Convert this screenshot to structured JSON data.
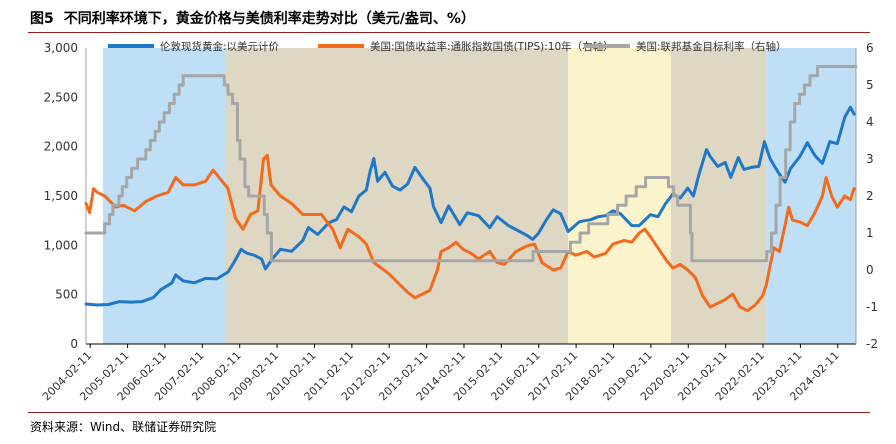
{
  "figure": {
    "label": "图5",
    "title": "不同利率环境下，黄金价格与美债利率走势对比（美元/盎司、%）",
    "source": "资料来源：Wind、联储证券研究院"
  },
  "chart_data": {
    "type": "line",
    "x_range": [
      2004.0,
      2024.6
    ],
    "x_ticks": [
      "2004-02-11",
      "2005-02-11",
      "2006-02-11",
      "2007-02-11",
      "2008-02-11",
      "2009-02-11",
      "2010-02-11",
      "2011-02-11",
      "2012-02-11",
      "2013-02-11",
      "2014-02-11",
      "2015-02-11",
      "2016-02-11",
      "2017-02-11",
      "2018-02-11",
      "2019-02-11",
      "2020-02-11",
      "2021-02-11",
      "2022-02-11",
      "2023-02-11",
      "2024-02-11"
    ],
    "y_left": {
      "range": [
        0,
        3000
      ],
      "ticks": [
        "0",
        "500",
        "1,000",
        "1,500",
        "2,000",
        "2,500",
        "3,000"
      ],
      "tick_values": [
        0,
        500,
        1000,
        1500,
        2000,
        2500,
        3000
      ]
    },
    "y_right": {
      "range": [
        -2,
        6
      ],
      "ticks": [
        "-2",
        "-1",
        "0",
        "1",
        "2",
        "3",
        "4",
        "5",
        "6"
      ],
      "tick_values": [
        -2,
        -1,
        0,
        1,
        2,
        3,
        4,
        5,
        6
      ]
    },
    "shaded_periods": [
      {
        "start": 2004.45,
        "end": 2007.72,
        "color": "#bfdff6",
        "meaning": "rate hike"
      },
      {
        "start": 2007.72,
        "end": 2016.9,
        "color": "#ddd7c3",
        "meaning": "cut / zero rate"
      },
      {
        "start": 2016.9,
        "end": 2019.65,
        "color": "#fbf3cc",
        "meaning": "hike"
      },
      {
        "start": 2019.65,
        "end": 2022.2,
        "color": "#ddd7c3",
        "meaning": "cut / zero rate"
      },
      {
        "start": 2022.2,
        "end": 2024.6,
        "color": "#bfdff6",
        "meaning": "rate hike"
      }
    ],
    "series": [
      {
        "name": "伦敦现货黄金:以美元计价",
        "axis": "left",
        "color": "#1f77c9",
        "points": [
          [
            2004.0,
            405
          ],
          [
            2004.3,
            395
          ],
          [
            2004.6,
            400
          ],
          [
            2004.9,
            430
          ],
          [
            2005.2,
            425
          ],
          [
            2005.5,
            430
          ],
          [
            2005.8,
            470
          ],
          [
            2006.0,
            550
          ],
          [
            2006.3,
            620
          ],
          [
            2006.4,
            700
          ],
          [
            2006.6,
            640
          ],
          [
            2006.9,
            620
          ],
          [
            2007.2,
            665
          ],
          [
            2007.5,
            660
          ],
          [
            2007.8,
            730
          ],
          [
            2007.95,
            820
          ],
          [
            2008.15,
            960
          ],
          [
            2008.3,
            920
          ],
          [
            2008.5,
            900
          ],
          [
            2008.7,
            860
          ],
          [
            2008.8,
            760
          ],
          [
            2009.0,
            870
          ],
          [
            2009.2,
            960
          ],
          [
            2009.5,
            940
          ],
          [
            2009.8,
            1050
          ],
          [
            2009.95,
            1180
          ],
          [
            2010.2,
            1110
          ],
          [
            2010.5,
            1230
          ],
          [
            2010.7,
            1260
          ],
          [
            2010.9,
            1390
          ],
          [
            2011.1,
            1340
          ],
          [
            2011.3,
            1500
          ],
          [
            2011.5,
            1560
          ],
          [
            2011.6,
            1750
          ],
          [
            2011.7,
            1880
          ],
          [
            2011.8,
            1650
          ],
          [
            2012.0,
            1740
          ],
          [
            2012.2,
            1600
          ],
          [
            2012.4,
            1560
          ],
          [
            2012.6,
            1620
          ],
          [
            2012.8,
            1790
          ],
          [
            2013.0,
            1680
          ],
          [
            2013.2,
            1580
          ],
          [
            2013.3,
            1390
          ],
          [
            2013.5,
            1230
          ],
          [
            2013.7,
            1400
          ],
          [
            2014.0,
            1210
          ],
          [
            2014.2,
            1330
          ],
          [
            2014.5,
            1300
          ],
          [
            2014.8,
            1180
          ],
          [
            2015.0,
            1290
          ],
          [
            2015.3,
            1200
          ],
          [
            2015.5,
            1160
          ],
          [
            2015.8,
            1100
          ],
          [
            2015.95,
            1060
          ],
          [
            2016.1,
            1120
          ],
          [
            2016.3,
            1250
          ],
          [
            2016.5,
            1360
          ],
          [
            2016.7,
            1320
          ],
          [
            2016.9,
            1140
          ],
          [
            2017.2,
            1240
          ],
          [
            2017.5,
            1260
          ],
          [
            2017.7,
            1290
          ],
          [
            2017.9,
            1300
          ],
          [
            2018.1,
            1350
          ],
          [
            2018.3,
            1320
          ],
          [
            2018.6,
            1200
          ],
          [
            2018.8,
            1200
          ],
          [
            2019.1,
            1310
          ],
          [
            2019.3,
            1290
          ],
          [
            2019.5,
            1420
          ],
          [
            2019.7,
            1520
          ],
          [
            2019.9,
            1480
          ],
          [
            2020.1,
            1580
          ],
          [
            2020.25,
            1500
          ],
          [
            2020.4,
            1720
          ],
          [
            2020.6,
            1970
          ],
          [
            2020.7,
            1900
          ],
          [
            2020.9,
            1800
          ],
          [
            2021.1,
            1840
          ],
          [
            2021.25,
            1690
          ],
          [
            2021.45,
            1890
          ],
          [
            2021.6,
            1770
          ],
          [
            2021.8,
            1790
          ],
          [
            2022.0,
            1800
          ],
          [
            2022.15,
            2050
          ],
          [
            2022.3,
            1880
          ],
          [
            2022.5,
            1750
          ],
          [
            2022.7,
            1640
          ],
          [
            2022.85,
            1780
          ],
          [
            2023.1,
            1900
          ],
          [
            2023.3,
            2040
          ],
          [
            2023.5,
            1910
          ],
          [
            2023.7,
            1830
          ],
          [
            2023.9,
            2050
          ],
          [
            2024.1,
            2030
          ],
          [
            2024.3,
            2300
          ],
          [
            2024.45,
            2400
          ],
          [
            2024.55,
            2330
          ]
        ]
      },
      {
        "name": "美国:国债收益率:通胀指数国债(TIPS):10年（右轴）",
        "axis": "right",
        "color": "#f26b1d",
        "points": [
          [
            2004.0,
            1.8
          ],
          [
            2004.1,
            1.55
          ],
          [
            2004.2,
            2.2
          ],
          [
            2004.3,
            2.1
          ],
          [
            2004.5,
            2.0
          ],
          [
            2004.8,
            1.7
          ],
          [
            2005.0,
            1.75
          ],
          [
            2005.3,
            1.6
          ],
          [
            2005.6,
            1.85
          ],
          [
            2005.9,
            2.0
          ],
          [
            2006.2,
            2.1
          ],
          [
            2006.4,
            2.5
          ],
          [
            2006.6,
            2.3
          ],
          [
            2006.9,
            2.3
          ],
          [
            2007.2,
            2.4
          ],
          [
            2007.4,
            2.7
          ],
          [
            2007.6,
            2.45
          ],
          [
            2007.8,
            2.2
          ],
          [
            2008.0,
            1.4
          ],
          [
            2008.2,
            1.1
          ],
          [
            2008.4,
            1.5
          ],
          [
            2008.6,
            1.6
          ],
          [
            2008.75,
            3.0
          ],
          [
            2008.85,
            3.1
          ],
          [
            2008.95,
            2.3
          ],
          [
            2009.2,
            2.0
          ],
          [
            2009.5,
            1.8
          ],
          [
            2009.8,
            1.5
          ],
          [
            2010.0,
            1.5
          ],
          [
            2010.3,
            1.5
          ],
          [
            2010.6,
            1.1
          ],
          [
            2010.8,
            0.6
          ],
          [
            2011.0,
            1.1
          ],
          [
            2011.3,
            0.9
          ],
          [
            2011.5,
            0.7
          ],
          [
            2011.7,
            0.2
          ],
          [
            2011.9,
            0.05
          ],
          [
            2012.1,
            -0.1
          ],
          [
            2012.4,
            -0.4
          ],
          [
            2012.6,
            -0.6
          ],
          [
            2012.8,
            -0.75
          ],
          [
            2013.0,
            -0.65
          ],
          [
            2013.2,
            -0.55
          ],
          [
            2013.4,
            0.0
          ],
          [
            2013.5,
            0.5
          ],
          [
            2013.7,
            0.6
          ],
          [
            2013.9,
            0.75
          ],
          [
            2014.1,
            0.55
          ],
          [
            2014.3,
            0.45
          ],
          [
            2014.5,
            0.3
          ],
          [
            2014.8,
            0.5
          ],
          [
            2015.0,
            0.2
          ],
          [
            2015.2,
            0.15
          ],
          [
            2015.5,
            0.5
          ],
          [
            2015.8,
            0.65
          ],
          [
            2016.0,
            0.7
          ],
          [
            2016.2,
            0.2
          ],
          [
            2016.5,
            0.0
          ],
          [
            2016.7,
            0.05
          ],
          [
            2016.9,
            0.5
          ],
          [
            2017.1,
            0.4
          ],
          [
            2017.4,
            0.5
          ],
          [
            2017.6,
            0.35
          ],
          [
            2017.9,
            0.45
          ],
          [
            2018.1,
            0.7
          ],
          [
            2018.4,
            0.8
          ],
          [
            2018.6,
            0.75
          ],
          [
            2018.8,
            1.0
          ],
          [
            2018.95,
            1.1
          ],
          [
            2019.1,
            0.9
          ],
          [
            2019.3,
            0.6
          ],
          [
            2019.5,
            0.3
          ],
          [
            2019.7,
            0.05
          ],
          [
            2019.9,
            0.15
          ],
          [
            2020.1,
            0.0
          ],
          [
            2020.3,
            -0.2
          ],
          [
            2020.5,
            -0.7
          ],
          [
            2020.7,
            -1.0
          ],
          [
            2020.9,
            -0.9
          ],
          [
            2021.1,
            -0.8
          ],
          [
            2021.3,
            -0.65
          ],
          [
            2021.5,
            -1.0
          ],
          [
            2021.7,
            -1.1
          ],
          [
            2021.9,
            -0.95
          ],
          [
            2022.1,
            -0.7
          ],
          [
            2022.2,
            -0.4
          ],
          [
            2022.3,
            0.1
          ],
          [
            2022.4,
            0.6
          ],
          [
            2022.55,
            0.5
          ],
          [
            2022.7,
            1.2
          ],
          [
            2022.8,
            1.7
          ],
          [
            2022.9,
            1.35
          ],
          [
            2023.1,
            1.3
          ],
          [
            2023.3,
            1.2
          ],
          [
            2023.5,
            1.55
          ],
          [
            2023.7,
            2.0
          ],
          [
            2023.8,
            2.5
          ],
          [
            2023.95,
            2.0
          ],
          [
            2024.1,
            1.7
          ],
          [
            2024.3,
            2.0
          ],
          [
            2024.45,
            1.9
          ],
          [
            2024.55,
            2.2
          ]
        ]
      },
      {
        "name": "美国:联邦基金目标利率（右轴）",
        "axis": "right",
        "color": "#a6a6a6",
        "steps": [
          [
            2004.0,
            1.0
          ],
          [
            2004.5,
            1.25
          ],
          [
            2004.63,
            1.5
          ],
          [
            2004.72,
            1.75
          ],
          [
            2004.88,
            2.0
          ],
          [
            2004.97,
            2.25
          ],
          [
            2005.09,
            2.5
          ],
          [
            2005.22,
            2.75
          ],
          [
            2005.38,
            3.0
          ],
          [
            2005.6,
            3.25
          ],
          [
            2005.72,
            3.5
          ],
          [
            2005.85,
            3.75
          ],
          [
            2005.96,
            4.0
          ],
          [
            2006.09,
            4.25
          ],
          [
            2006.23,
            4.5
          ],
          [
            2006.36,
            4.75
          ],
          [
            2006.49,
            5.0
          ],
          [
            2006.6,
            5.25
          ],
          [
            2007.7,
            5.0
          ],
          [
            2007.8,
            4.75
          ],
          [
            2007.92,
            4.5
          ],
          [
            2008.05,
            3.5
          ],
          [
            2008.12,
            3.0
          ],
          [
            2008.25,
            2.25
          ],
          [
            2008.35,
            2.0
          ],
          [
            2008.77,
            1.5
          ],
          [
            2008.85,
            1.0
          ],
          [
            2008.96,
            0.25
          ],
          [
            2015.96,
            0.5
          ],
          [
            2016.96,
            0.75
          ],
          [
            2017.22,
            1.0
          ],
          [
            2017.45,
            1.25
          ],
          [
            2017.96,
            1.5
          ],
          [
            2018.22,
            1.75
          ],
          [
            2018.45,
            2.0
          ],
          [
            2018.72,
            2.25
          ],
          [
            2018.97,
            2.5
          ],
          [
            2019.58,
            2.25
          ],
          [
            2019.72,
            2.0
          ],
          [
            2019.83,
            1.75
          ],
          [
            2020.17,
            1.0
          ],
          [
            2020.21,
            0.25
          ],
          [
            2022.21,
            0.5
          ],
          [
            2022.34,
            1.0
          ],
          [
            2022.46,
            1.75
          ],
          [
            2022.57,
            2.5
          ],
          [
            2022.72,
            3.25
          ],
          [
            2022.84,
            4.0
          ],
          [
            2022.96,
            4.5
          ],
          [
            2023.09,
            4.75
          ],
          [
            2023.22,
            5.0
          ],
          [
            2023.37,
            5.25
          ],
          [
            2023.57,
            5.5
          ],
          [
            2024.6,
            5.5
          ]
        ]
      }
    ]
  }
}
